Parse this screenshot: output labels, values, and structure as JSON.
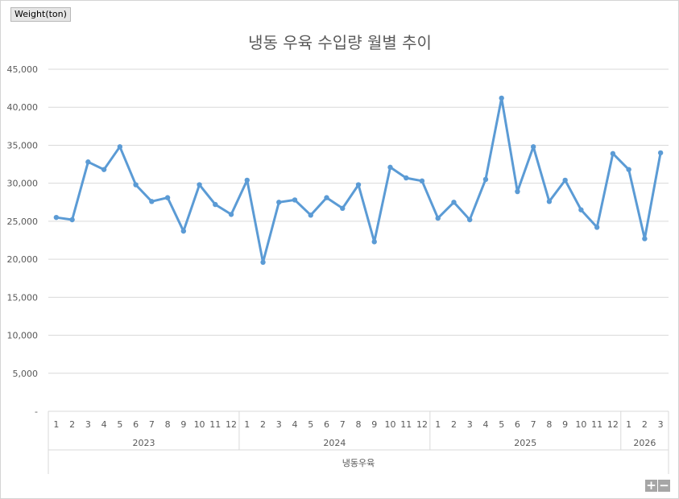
{
  "field_button": {
    "label": "Weight(ton)"
  },
  "zoom": {
    "plus": "+",
    "minus": "−"
  },
  "colors": {
    "series": "#5B9BD5",
    "grid": "#d9d9d9",
    "text": "#595959"
  },
  "chart_data": {
    "type": "line",
    "title": "냉동 우육 수입량 월별 추이",
    "xlabel": "냉동우육",
    "ylabel": "",
    "ylim": [
      0,
      45000
    ],
    "yticks": [
      0,
      5000,
      10000,
      15000,
      20000,
      25000,
      30000,
      35000,
      40000,
      45000
    ],
    "ytick_labels": [
      "-",
      "5,000",
      "10,000",
      "15,000",
      "20,000",
      "25,000",
      "30,000",
      "35,000",
      "40,000",
      "45,000"
    ],
    "grid": true,
    "legend": "none",
    "year_groups": [
      {
        "year": "2023",
        "months": [
          "1",
          "2",
          "3",
          "4",
          "5",
          "6",
          "7",
          "8",
          "9",
          "10",
          "11",
          "12"
        ]
      },
      {
        "year": "2024",
        "months": [
          "1",
          "2",
          "3",
          "4",
          "5",
          "6",
          "7",
          "8",
          "9",
          "10",
          "11",
          "12"
        ]
      },
      {
        "year": "2025",
        "months": [
          "1",
          "2",
          "3",
          "4",
          "5",
          "6",
          "7",
          "8",
          "9",
          "10",
          "11",
          "12"
        ]
      },
      {
        "year": "2026",
        "months": [
          "1",
          "2",
          "3"
        ]
      }
    ],
    "series": [
      {
        "values": [
          25500,
          25200,
          32800,
          31800,
          34800,
          29800,
          27600,
          28100,
          23700,
          29800,
          27200,
          25900,
          30400,
          19600,
          27500,
          27800,
          25800,
          28100,
          26700,
          29800,
          22300,
          32100,
          30700,
          30300,
          25400,
          27500,
          25200,
          30500,
          41200,
          28900,
          34800,
          27600,
          30400,
          26500,
          24200,
          33900,
          31800,
          22700,
          34000
        ]
      }
    ]
  }
}
